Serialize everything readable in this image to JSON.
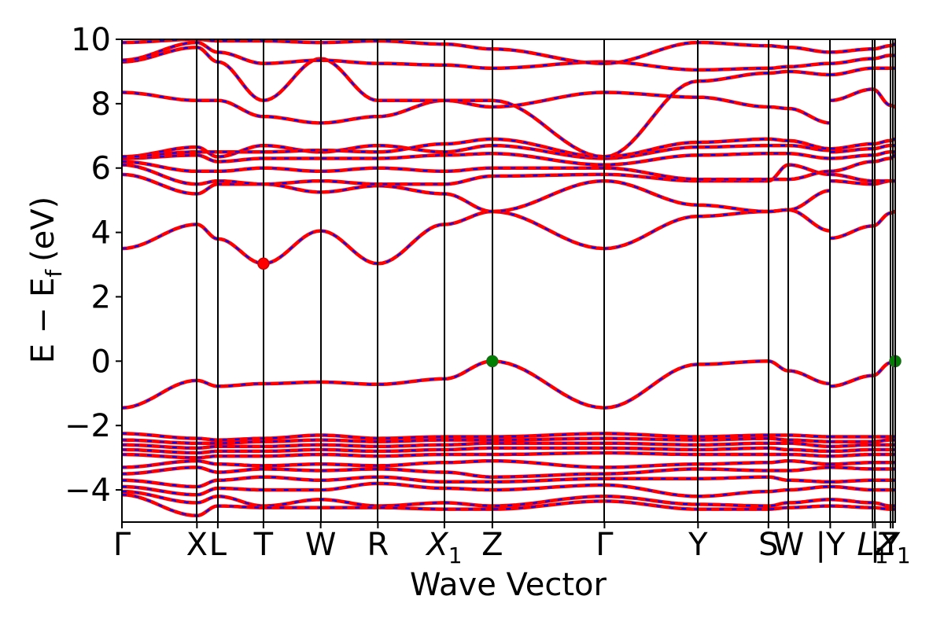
{
  "chart_data": {
    "type": "line",
    "xlabel": "Wave Vector",
    "ylabel_main": "E − E",
    "ylabel_sub": "f",
    "ylabel_unit": "(eV)",
    "ylim": [
      -5,
      10
    ],
    "yticks": [
      -4,
      -2,
      0,
      2,
      4,
      6,
      8,
      10
    ],
    "ytick_labels": [
      "−4",
      "−2",
      "0",
      "2",
      "4",
      "6",
      "8",
      "10"
    ],
    "x_domain": [
      0,
      10
    ],
    "kpoints": [
      {
        "label": "Γ",
        "sub": "",
        "x": 0.0
      },
      {
        "label": "X",
        "sub": "",
        "x": 0.97
      },
      {
        "label": "L",
        "sub": "",
        "x": 1.24
      },
      {
        "label": "T",
        "sub": "",
        "x": 1.83
      },
      {
        "label": "W",
        "sub": "",
        "x": 2.57
      },
      {
        "label": "R",
        "sub": "",
        "x": 3.31
      },
      {
        "label": "X",
        "sub": "1",
        "x": 4.17
      },
      {
        "label": "Z",
        "sub": "",
        "x": 4.79
      },
      {
        "label": "Γ",
        "sub": "",
        "x": 6.24
      },
      {
        "label": "Y",
        "sub": "",
        "x": 7.45
      },
      {
        "label": "S",
        "sub": "",
        "x": 8.36
      },
      {
        "label": "W",
        "sub": "",
        "x": 8.62
      },
      {
        "label": "|Y",
        "sub": "",
        "x": 9.16
      },
      {
        "label": "L",
        "sub": "1",
        "x": 9.71
      },
      {
        "label": "|",
        "sub": "",
        "x": 9.74
      },
      {
        "label": "Y",
        "sub": "",
        "x": 9.94
      },
      {
        "label": "Z",
        "sub": "1",
        "x": 9.97
      }
    ],
    "segment_break_x": 9.16,
    "colors": {
      "band_solid": "#ff0000",
      "band_dash": "#0000ff",
      "vbm_marker": "#008000",
      "cbm_marker": "#ff0000",
      "vline": "#000000"
    },
    "markers": [
      {
        "name": "conduction-band-minimum",
        "x": 1.83,
        "y": 3.03,
        "color": "#ff0000"
      },
      {
        "name": "valence-band-maximum",
        "x": 4.79,
        "y": 0.0,
        "color": "#008000"
      },
      {
        "name": "valence-band-maximum-end",
        "x": 10.0,
        "y": 0.0,
        "color": "#008000"
      }
    ],
    "series": [
      {
        "x": [
          0,
          0.97,
          1.24,
          1.83,
          2.57,
          3.31,
          4.17,
          4.79,
          6.24,
          7.45,
          8.36,
          8.62,
          9.16
        ],
        "y": [
          -1.45,
          -0.6,
          -0.78,
          -0.7,
          -0.65,
          -0.72,
          -0.55,
          0.0,
          -1.45,
          -0.1,
          0.0,
          -0.3,
          -0.7
        ]
      },
      {
        "x": [
          9.16,
          9.71,
          9.94,
          10.0
        ],
        "y": [
          -0.78,
          -0.45,
          -0.05,
          0.0
        ]
      },
      {
        "x": [
          0,
          0.97,
          1.24,
          1.83,
          2.57,
          3.31,
          4.17,
          4.79,
          6.24,
          7.45,
          8.36,
          8.62,
          9.16
        ],
        "y": [
          3.5,
          4.25,
          3.8,
          3.03,
          4.05,
          3.03,
          4.25,
          4.65,
          3.5,
          4.5,
          4.65,
          4.7,
          4.05
        ]
      },
      {
        "x": [
          9.16,
          9.71,
          9.94,
          10.0
        ],
        "y": [
          3.82,
          4.2,
          4.6,
          4.65
        ]
      },
      {
        "x": [
          0,
          0.97,
          1.24,
          1.83,
          2.57,
          3.31,
          4.17,
          4.79,
          6.24,
          7.45,
          8.36,
          8.62,
          9.16
        ],
        "y": [
          5.8,
          5.2,
          5.5,
          5.5,
          5.25,
          5.45,
          5.2,
          4.65,
          5.6,
          4.85,
          4.65,
          4.7,
          5.3
        ]
      },
      {
        "x": [
          9.16,
          9.71,
          9.94,
          10.0
        ],
        "y": [
          5.6,
          5.5,
          5.6,
          5.6
        ]
      },
      {
        "x": [
          0,
          0.97,
          1.24,
          1.83,
          2.57,
          3.31,
          4.17,
          4.79,
          6.24,
          7.45,
          8.36,
          8.62,
          9.16
        ],
        "y": [
          6.1,
          5.5,
          5.6,
          5.5,
          5.6,
          5.5,
          5.5,
          5.75,
          5.8,
          5.6,
          5.6,
          6.1,
          5.8
        ]
      },
      {
        "x": [
          9.16,
          9.71,
          9.94,
          10.0
        ],
        "y": [
          5.8,
          5.6,
          5.6,
          5.6
        ]
      },
      {
        "x": [
          0,
          0.97,
          1.24,
          1.83,
          2.57,
          3.31,
          4.17,
          4.79,
          6.24,
          7.45,
          8.36,
          8.62,
          9.16
        ],
        "y": [
          6.2,
          5.9,
          5.9,
          6.0,
          5.9,
          6.0,
          5.9,
          6.0,
          6.0,
          5.65,
          5.65,
          5.65,
          5.9
        ]
      },
      {
        "x": [
          9.16,
          9.71,
          9.94,
          10.0
        ],
        "y": [
          5.9,
          6.2,
          6.3,
          6.4
        ]
      },
      {
        "x": [
          0,
          0.97,
          1.24,
          1.83,
          2.57,
          3.31,
          4.17,
          4.79,
          6.24,
          7.45,
          8.36,
          8.62,
          9.16
        ],
        "y": [
          6.3,
          6.4,
          6.2,
          6.3,
          6.3,
          6.3,
          6.4,
          6.45,
          6.1,
          6.4,
          6.45,
          6.45,
          6.3
        ]
      },
      {
        "x": [
          9.16,
          9.71,
          9.94,
          10.0
        ],
        "y": [
          6.3,
          6.4,
          6.5,
          6.5
        ]
      },
      {
        "x": [
          0,
          0.97,
          1.24,
          1.83,
          2.57,
          3.31,
          4.17,
          4.79,
          6.24,
          7.45,
          8.36,
          8.62,
          9.16
        ],
        "y": [
          6.35,
          6.65,
          6.35,
          6.7,
          6.5,
          6.7,
          6.5,
          6.7,
          6.3,
          6.65,
          6.7,
          6.7,
          6.55
        ]
      },
      {
        "x": [
          9.16,
          9.71,
          9.94,
          10.0
        ],
        "y": [
          6.5,
          6.6,
          6.7,
          6.7
        ]
      },
      {
        "x": [
          0,
          0.97,
          1.24,
          1.83,
          2.57,
          3.31,
          4.17,
          4.79,
          6.24,
          7.45,
          8.36,
          8.62,
          9.16
        ],
        "y": [
          6.35,
          6.5,
          6.5,
          6.5,
          6.55,
          6.5,
          6.75,
          6.9,
          6.35,
          6.8,
          6.9,
          6.85,
          6.6
        ]
      },
      {
        "x": [
          9.16,
          9.71,
          9.94,
          10.0
        ],
        "y": [
          6.6,
          6.75,
          6.85,
          6.9
        ]
      },
      {
        "x": [
          0,
          0.97,
          1.24,
          1.83,
          2.57,
          3.31,
          4.17,
          4.79,
          6.24,
          7.45,
          8.36,
          8.62,
          9.16
        ],
        "y": [
          8.35,
          8.1,
          8.1,
          7.6,
          7.4,
          7.6,
          8.1,
          7.9,
          8.35,
          8.2,
          7.9,
          7.85,
          7.4
        ]
      },
      {
        "x": [
          9.16,
          9.71,
          9.94,
          10.0
        ],
        "y": [
          8.1,
          8.45,
          7.95,
          7.9
        ]
      },
      {
        "x": [
          0,
          0.97,
          1.24,
          1.83,
          2.57,
          3.31,
          4.17,
          4.79,
          6.24,
          7.45,
          8.36,
          8.62,
          9.16
        ],
        "y": [
          9.3,
          9.75,
          9.3,
          8.1,
          9.4,
          8.1,
          8.1,
          8.1,
          6.35,
          8.7,
          8.95,
          9.0,
          8.9
        ]
      },
      {
        "x": [
          9.16,
          9.71,
          9.94,
          10.0
        ],
        "y": [
          8.9,
          9.1,
          9.1,
          9.1
        ]
      },
      {
        "x": [
          0,
          0.97,
          1.24,
          1.83,
          2.57,
          3.31,
          4.17,
          4.79,
          6.24,
          7.45,
          8.36,
          8.62,
          9.16
        ],
        "y": [
          9.35,
          9.9,
          9.6,
          9.25,
          9.35,
          9.25,
          9.2,
          9.1,
          9.3,
          9.05,
          9.1,
          9.15,
          9.25
        ]
      },
      {
        "x": [
          9.16,
          9.71,
          9.94,
          10.0
        ],
        "y": [
          9.25,
          9.4,
          9.5,
          9.5
        ]
      },
      {
        "x": [
          0,
          0.97,
          1.24,
          1.83,
          2.57,
          3.31,
          4.17,
          4.79,
          6.24,
          7.45,
          8.36,
          8.62,
          9.16
        ],
        "y": [
          9.9,
          10.0,
          9.95,
          9.95,
          9.9,
          9.95,
          9.85,
          9.7,
          9.25,
          9.9,
          9.8,
          9.75,
          9.6
        ]
      },
      {
        "x": [
          9.16,
          9.71,
          9.94,
          10.0
        ],
        "y": [
          9.6,
          9.7,
          9.8,
          9.85
        ]
      },
      {
        "x": [
          0,
          0.97,
          1.24,
          1.83,
          2.57,
          3.31,
          4.17,
          4.79,
          6.24,
          7.45,
          8.36,
          8.62,
          9.16
        ],
        "y": [
          -2.25,
          -2.4,
          -2.45,
          -2.4,
          -2.3,
          -2.4,
          -2.35,
          -2.35,
          -2.25,
          -2.35,
          -2.3,
          -2.3,
          -2.35
        ]
      },
      {
        "x": [
          9.16,
          9.71,
          9.94,
          10.0
        ],
        "y": [
          -2.35,
          -2.35,
          -2.35,
          -2.35
        ]
      },
      {
        "x": [
          0,
          0.97,
          1.24,
          1.83,
          2.57,
          3.31,
          4.17,
          4.79,
          6.24,
          7.45,
          8.36,
          8.62,
          9.16
        ],
        "y": [
          -2.45,
          -2.55,
          -2.55,
          -2.5,
          -2.45,
          -2.5,
          -2.45,
          -2.45,
          -2.4,
          -2.45,
          -2.4,
          -2.45,
          -2.5
        ]
      },
      {
        "x": [
          9.16,
          9.71,
          9.94,
          10.0
        ],
        "y": [
          -2.5,
          -2.5,
          -2.45,
          -2.45
        ]
      },
      {
        "x": [
          0,
          0.97,
          1.24,
          1.83,
          2.57,
          3.31,
          4.17,
          4.79,
          6.24,
          7.45,
          8.36,
          8.62,
          9.16
        ],
        "y": [
          -2.6,
          -2.7,
          -2.65,
          -2.65,
          -2.6,
          -2.65,
          -2.6,
          -2.55,
          -2.55,
          -2.6,
          -2.55,
          -2.55,
          -2.65
        ]
      },
      {
        "x": [
          9.16,
          9.71,
          9.94,
          10.0
        ],
        "y": [
          -2.65,
          -2.6,
          -2.6,
          -2.6
        ]
      },
      {
        "x": [
          0,
          0.97,
          1.24,
          1.83,
          2.57,
          3.31,
          4.17,
          4.79,
          6.24,
          7.45,
          8.36,
          8.62,
          9.16
        ],
        "y": [
          -2.75,
          -2.85,
          -2.8,
          -2.8,
          -2.75,
          -2.8,
          -2.75,
          -2.7,
          -2.7,
          -2.75,
          -2.7,
          -2.75,
          -2.8
        ]
      },
      {
        "x": [
          9.16,
          9.71,
          9.94,
          10.0
        ],
        "y": [
          -2.8,
          -2.75,
          -2.75,
          -2.75
        ]
      },
      {
        "x": [
          0,
          0.97,
          1.24,
          1.83,
          2.57,
          3.31,
          4.17,
          4.79,
          6.24,
          7.45,
          8.36,
          8.62,
          9.16
        ],
        "y": [
          -2.9,
          -3.0,
          -2.95,
          -2.95,
          -2.9,
          -2.95,
          -2.9,
          -2.9,
          -2.85,
          -2.9,
          -2.9,
          -2.9,
          -2.95
        ]
      },
      {
        "x": [
          9.16,
          9.71,
          9.94,
          10.0
        ],
        "y": [
          -2.95,
          -2.9,
          -2.9,
          -2.9
        ]
      },
      {
        "x": [
          0,
          0.97,
          1.24,
          1.83,
          2.57,
          3.31,
          4.17,
          4.79,
          6.24,
          7.45,
          8.36,
          8.62,
          9.16
        ],
        "y": [
          -3.3,
          -3.1,
          -3.2,
          -3.25,
          -3.2,
          -3.25,
          -3.15,
          -3.1,
          -3.3,
          -3.2,
          -3.15,
          -3.1,
          -3.2
        ]
      },
      {
        "x": [
          9.16,
          9.71,
          9.94,
          10.0
        ],
        "y": [
          -3.2,
          -3.15,
          -3.15,
          -3.15
        ]
      },
      {
        "x": [
          0,
          0.97,
          1.24,
          1.83,
          2.57,
          3.31,
          4.17,
          4.79,
          6.24,
          7.45,
          8.36,
          8.62,
          9.16
        ],
        "y": [
          -3.5,
          -3.3,
          -3.45,
          -3.35,
          -3.4,
          -3.35,
          -3.45,
          -3.6,
          -3.5,
          -3.35,
          -3.4,
          -3.4,
          -3.3
        ]
      },
      {
        "x": [
          9.16,
          9.71,
          9.94,
          10.0
        ],
        "y": [
          -3.3,
          -3.35,
          -3.35,
          -3.35
        ]
      },
      {
        "x": [
          0,
          0.97,
          1.24,
          1.83,
          2.57,
          3.31,
          4.17,
          4.79,
          6.24,
          7.45,
          8.36,
          8.62,
          9.16
        ],
        "y": [
          -3.7,
          -3.9,
          -3.7,
          -3.6,
          -3.7,
          -3.6,
          -3.75,
          -3.75,
          -3.65,
          -3.65,
          -3.6,
          -3.7,
          -3.75
        ]
      },
      {
        "x": [
          9.16,
          9.71,
          9.94,
          10.0
        ],
        "y": [
          -3.75,
          -3.7,
          -3.7,
          -3.7
        ]
      },
      {
        "x": [
          0,
          0.97,
          1.24,
          1.83,
          2.57,
          3.31,
          4.17,
          4.79,
          6.24,
          7.45,
          8.36,
          8.62,
          9.16
        ],
        "y": [
          -3.9,
          -4.15,
          -3.95,
          -4.0,
          -4.0,
          -3.8,
          -3.95,
          -4.0,
          -3.85,
          -4.2,
          -4.05,
          -4.0,
          -3.9
        ]
      },
      {
        "x": [
          9.16,
          9.71,
          9.94,
          10.0
        ],
        "y": [
          -3.9,
          -4.0,
          -4.0,
          -4.0
        ]
      },
      {
        "x": [
          0,
          0.97,
          1.24,
          1.83,
          2.57,
          3.31,
          4.17,
          4.79,
          6.24,
          7.45,
          8.36,
          8.62,
          9.16
        ],
        "y": [
          -4.05,
          -4.4,
          -4.2,
          -4.5,
          -4.3,
          -4.5,
          -4.4,
          -4.5,
          -4.2,
          -4.45,
          -4.5,
          -4.4,
          -4.3
        ]
      },
      {
        "x": [
          9.16,
          9.71,
          9.94,
          10.0
        ],
        "y": [
          -4.3,
          -4.4,
          -4.5,
          -4.5
        ]
      },
      {
        "x": [
          0,
          0.97,
          1.24,
          1.83,
          2.57,
          3.31,
          4.17,
          4.79,
          6.24,
          7.45,
          8.36,
          8.62,
          9.16
        ],
        "y": [
          -4.15,
          -4.8,
          -4.5,
          -4.55,
          -4.55,
          -4.55,
          -4.6,
          -4.6,
          -4.35,
          -4.6,
          -4.6,
          -4.55,
          -4.5
        ]
      },
      {
        "x": [
          9.16,
          9.71,
          9.94,
          10.0
        ],
        "y": [
          -4.5,
          -4.55,
          -4.6,
          -4.6
        ]
      }
    ]
  }
}
